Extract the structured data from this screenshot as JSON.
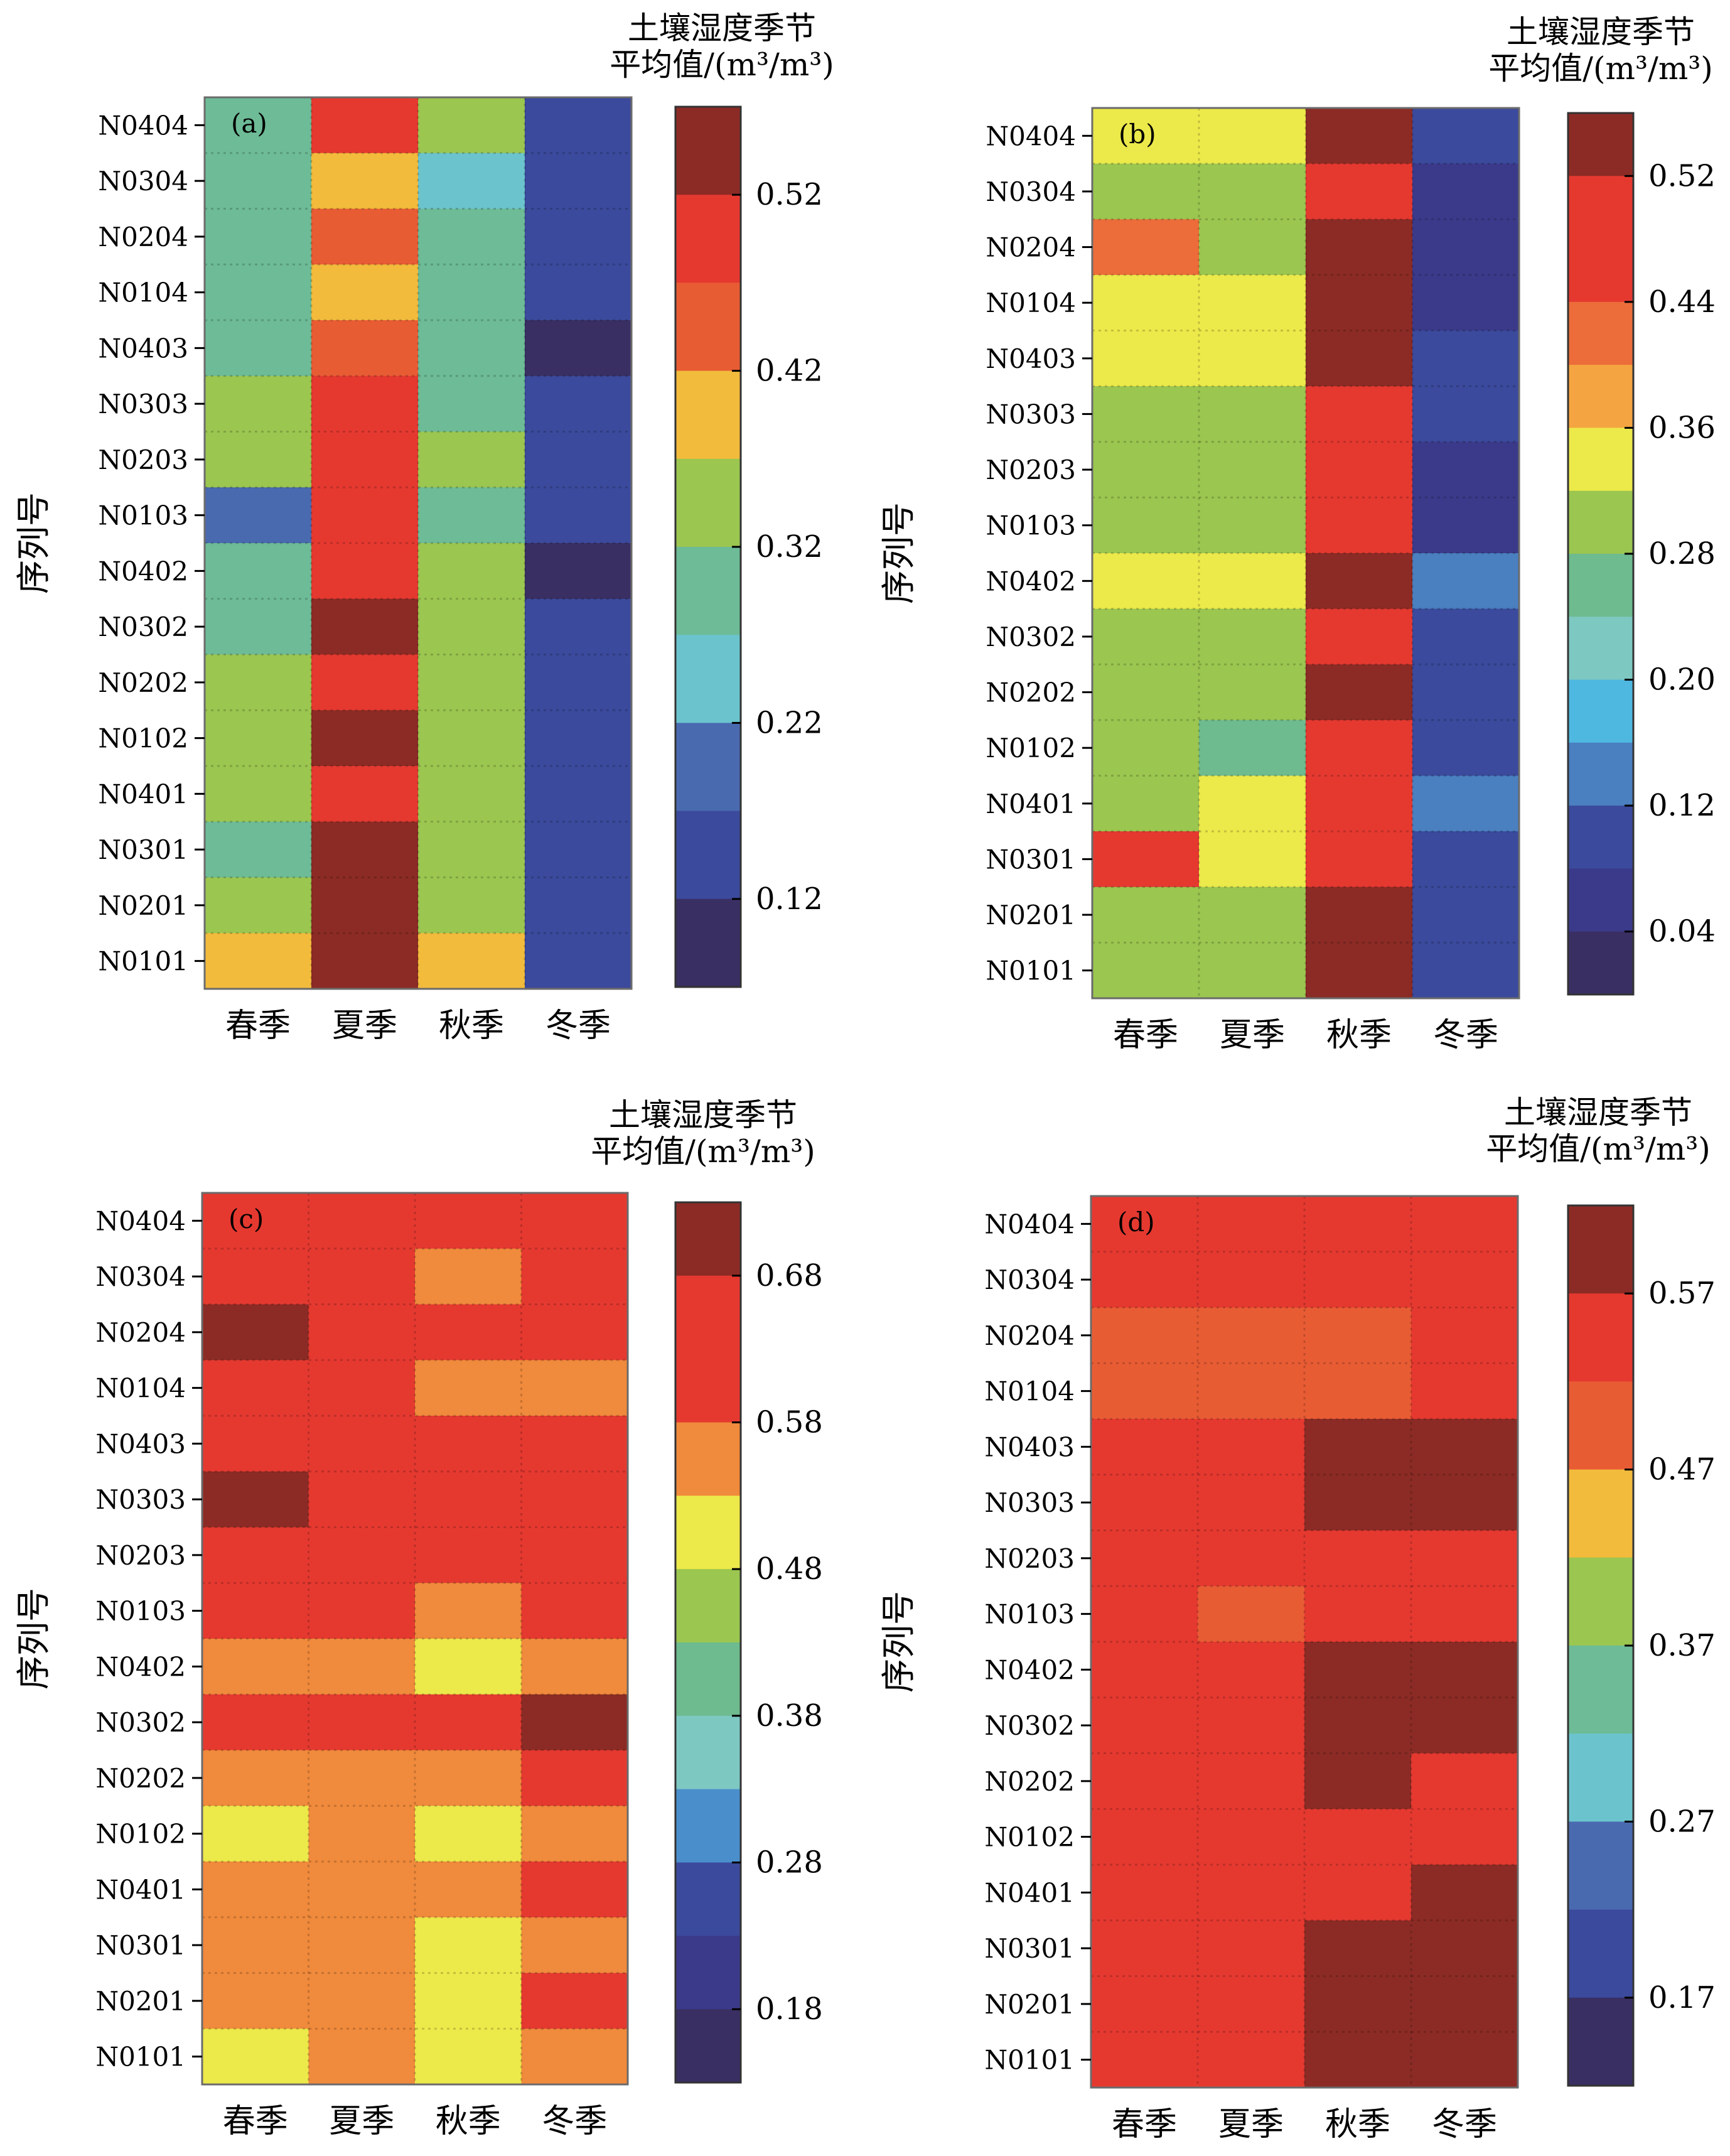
{
  "chart_data": [
    {
      "type": "heatmap",
      "panel_label": "(a)",
      "ylabel": "序列号",
      "columns": [
        "春季",
        "夏季",
        "秋季",
        "冬季"
      ],
      "rows": [
        "N0404",
        "N0304",
        "N0204",
        "N0104",
        "N0403",
        "N0303",
        "N0203",
        "N0103",
        "N0402",
        "N0302",
        "N0202",
        "N0102",
        "N0401",
        "N0301",
        "N0201",
        "N0101"
      ],
      "colorbar_title": [
        "土壤湿度季节",
        "平均值/(m³/m³)"
      ],
      "colorbar_ticks": [
        "0.52",
        "0.42",
        "0.32",
        "0.22",
        "0.12"
      ],
      "colorbar_tick_values": [
        0.52,
        0.42,
        0.32,
        0.22,
        0.12
      ],
      "colorbar_range": [
        0.07,
        0.57
      ],
      "colorbar_colors": [
        "#8c2b25",
        "#e53930",
        "#e85c34",
        "#f2bb3c",
        "#9bc650",
        "#6dbb97",
        "#6bc4cd",
        "#4a6ab0",
        "#3b4a9c",
        "#3a2f63"
      ],
      "values": [
        [
          0.29,
          0.49,
          0.33,
          0.14
        ],
        [
          0.29,
          0.39,
          0.25,
          0.14
        ],
        [
          0.29,
          0.44,
          0.29,
          0.14
        ],
        [
          0.29,
          0.39,
          0.29,
          0.14
        ],
        [
          0.29,
          0.44,
          0.29,
          0.09
        ],
        [
          0.34,
          0.49,
          0.29,
          0.14
        ],
        [
          0.34,
          0.49,
          0.34,
          0.14
        ],
        [
          0.19,
          0.49,
          0.29,
          0.14
        ],
        [
          0.29,
          0.49,
          0.34,
          0.09
        ],
        [
          0.29,
          0.54,
          0.34,
          0.14
        ],
        [
          0.34,
          0.49,
          0.34,
          0.14
        ],
        [
          0.34,
          0.54,
          0.34,
          0.14
        ],
        [
          0.34,
          0.49,
          0.34,
          0.14
        ],
        [
          0.29,
          0.54,
          0.34,
          0.14
        ],
        [
          0.34,
          0.54,
          0.34,
          0.14
        ],
        [
          0.39,
          0.54,
          0.39,
          0.14
        ]
      ]
    },
    {
      "type": "heatmap",
      "panel_label": "(b)",
      "ylabel": "序列号",
      "columns": [
        "春季",
        "夏季",
        "秋季",
        "冬季"
      ],
      "rows": [
        "N0404",
        "N0304",
        "N0204",
        "N0104",
        "N0403",
        "N0303",
        "N0203",
        "N0103",
        "N0402",
        "N0302",
        "N0202",
        "N0102",
        "N0401",
        "N0301",
        "N0201",
        "N0101"
      ],
      "colorbar_title": [
        "土壤湿度季节",
        "平均值/(m³/m³)"
      ],
      "colorbar_ticks": [
        "0.52",
        "0.44",
        "0.36",
        "0.28",
        "0.20",
        "0.12",
        "0.04"
      ],
      "colorbar_tick_values": [
        0.52,
        0.44,
        0.36,
        0.28,
        0.2,
        0.12,
        0.04
      ],
      "colorbar_range": [
        0.0,
        0.56
      ],
      "colorbar_colors": [
        "#8c2b25",
        "#e53930",
        "#e53930",
        "#ec6d3a",
        "#f4a541",
        "#ece94a",
        "#9bc650",
        "#6dbb8f",
        "#7ec8c2",
        "#4fb8e0",
        "#4a7fc0",
        "#3b4a9c",
        "#3b3a8a",
        "#3a2f63"
      ],
      "values": [
        [
          0.34,
          0.34,
          0.54,
          0.1
        ],
        [
          0.3,
          0.3,
          0.5,
          0.06
        ],
        [
          0.42,
          0.3,
          0.54,
          0.06
        ],
        [
          0.34,
          0.34,
          0.54,
          0.06
        ],
        [
          0.34,
          0.34,
          0.54,
          0.1
        ],
        [
          0.3,
          0.3,
          0.5,
          0.1
        ],
        [
          0.3,
          0.3,
          0.5,
          0.06
        ],
        [
          0.3,
          0.3,
          0.5,
          0.06
        ],
        [
          0.34,
          0.34,
          0.54,
          0.14
        ],
        [
          0.3,
          0.3,
          0.5,
          0.1
        ],
        [
          0.3,
          0.3,
          0.54,
          0.1
        ],
        [
          0.3,
          0.26,
          0.5,
          0.1
        ],
        [
          0.3,
          0.34,
          0.5,
          0.14
        ],
        [
          0.5,
          0.34,
          0.5,
          0.1
        ],
        [
          0.3,
          0.3,
          0.54,
          0.1
        ],
        [
          0.3,
          0.3,
          0.54,
          0.1
        ]
      ]
    },
    {
      "type": "heatmap",
      "panel_label": "(c)",
      "ylabel": "序列号",
      "columns": [
        "春季",
        "夏季",
        "秋季",
        "冬季"
      ],
      "rows": [
        "N0404",
        "N0304",
        "N0204",
        "N0104",
        "N0403",
        "N0303",
        "N0203",
        "N0103",
        "N0402",
        "N0302",
        "N0202",
        "N0102",
        "N0401",
        "N0301",
        "N0201",
        "N0101"
      ],
      "colorbar_title": [
        "土壤湿度季节",
        "平均值/(m³/m³)"
      ],
      "colorbar_ticks": [
        "0.68",
        "0.58",
        "0.48",
        "0.38",
        "0.28",
        "0.18"
      ],
      "colorbar_tick_values": [
        0.68,
        0.58,
        0.48,
        0.38,
        0.28,
        0.18
      ],
      "colorbar_range": [
        0.13,
        0.73
      ],
      "colorbar_colors": [
        "#8c2b25",
        "#e53930",
        "#e53930",
        "#f08a3c",
        "#ece94a",
        "#9bc650",
        "#6dbb8f",
        "#7ec8c2",
        "#4a8fcc",
        "#3b4a9c",
        "#3b3a8a",
        "#3a2f63"
      ],
      "values": [
        [
          0.63,
          0.63,
          0.63,
          0.63
        ],
        [
          0.63,
          0.63,
          0.55,
          0.63
        ],
        [
          0.7,
          0.63,
          0.63,
          0.63
        ],
        [
          0.63,
          0.63,
          0.55,
          0.55
        ],
        [
          0.63,
          0.63,
          0.63,
          0.63
        ],
        [
          0.7,
          0.63,
          0.63,
          0.63
        ],
        [
          0.63,
          0.63,
          0.63,
          0.63
        ],
        [
          0.63,
          0.63,
          0.55,
          0.63
        ],
        [
          0.55,
          0.55,
          0.5,
          0.55
        ],
        [
          0.63,
          0.63,
          0.63,
          0.7
        ],
        [
          0.55,
          0.55,
          0.55,
          0.63
        ],
        [
          0.5,
          0.55,
          0.5,
          0.55
        ],
        [
          0.55,
          0.55,
          0.55,
          0.63
        ],
        [
          0.55,
          0.55,
          0.5,
          0.55
        ],
        [
          0.55,
          0.55,
          0.5,
          0.63
        ],
        [
          0.5,
          0.55,
          0.5,
          0.55
        ]
      ]
    },
    {
      "type": "heatmap",
      "panel_label": "(d)",
      "ylabel": "序列号",
      "columns": [
        "春季",
        "夏季",
        "秋季",
        "冬季"
      ],
      "rows": [
        "N0404",
        "N0304",
        "N0204",
        "N0104",
        "N0403",
        "N0303",
        "N0203",
        "N0103",
        "N0402",
        "N0302",
        "N0202",
        "N0102",
        "N0401",
        "N0301",
        "N0201",
        "N0101"
      ],
      "colorbar_title": [
        "土壤湿度季节",
        "平均值/(m³/m³)"
      ],
      "colorbar_ticks": [
        "0.57",
        "0.47",
        "0.37",
        "0.27",
        "0.17"
      ],
      "colorbar_tick_values": [
        0.57,
        0.47,
        0.37,
        0.27,
        0.17
      ],
      "colorbar_range": [
        0.12,
        0.62
      ],
      "colorbar_colors": [
        "#8c2b25",
        "#e53930",
        "#e85c34",
        "#f2bb3c",
        "#9bc650",
        "#6dbb97",
        "#6bc4cd",
        "#4a6ab0",
        "#3b4a9c",
        "#3a2f63"
      ],
      "values": [
        [
          0.54,
          0.54,
          0.54,
          0.54
        ],
        [
          0.54,
          0.54,
          0.54,
          0.54
        ],
        [
          0.49,
          0.49,
          0.49,
          0.54
        ],
        [
          0.49,
          0.49,
          0.49,
          0.54
        ],
        [
          0.54,
          0.54,
          0.59,
          0.59
        ],
        [
          0.54,
          0.54,
          0.59,
          0.59
        ],
        [
          0.54,
          0.54,
          0.54,
          0.54
        ],
        [
          0.54,
          0.49,
          0.54,
          0.54
        ],
        [
          0.54,
          0.54,
          0.59,
          0.59
        ],
        [
          0.54,
          0.54,
          0.59,
          0.59
        ],
        [
          0.54,
          0.54,
          0.59,
          0.54
        ],
        [
          0.54,
          0.54,
          0.54,
          0.54
        ],
        [
          0.54,
          0.54,
          0.54,
          0.59
        ],
        [
          0.54,
          0.54,
          0.59,
          0.59
        ],
        [
          0.54,
          0.54,
          0.59,
          0.59
        ],
        [
          0.54,
          0.54,
          0.59,
          0.59
        ]
      ]
    }
  ]
}
